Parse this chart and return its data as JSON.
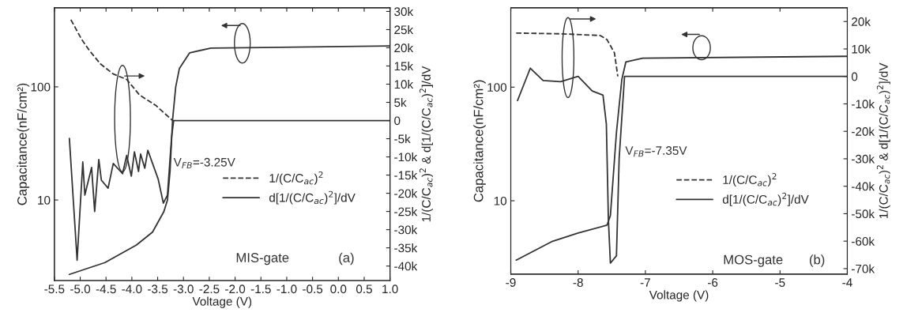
{
  "chart_data": [
    {
      "type": "line",
      "xlabel": "Voltage (V)",
      "ylabel": "Capacitance(nF/cm²)",
      "y2label": "1/(C/C$_{ac}$)$^{2}$ & d[1/(C/C$_{ac}$)$^{2}$]/dV",
      "log": true,
      "grid": false,
      "legend": "right",
      "xlim": [
        -5.5,
        1.0
      ],
      "xticks": [
        {
          "value": -5.5,
          "label": "-5.5"
        },
        {
          "value": -5,
          "label": "-5.0"
        },
        {
          "value": -4.5,
          "label": "-4.5"
        },
        {
          "value": -4,
          "label": "-4.0"
        },
        {
          "value": -3.5,
          "label": "-3.5"
        },
        {
          "value": -3,
          "label": "-3.0"
        },
        {
          "value": -2.5,
          "label": "-2.5"
        },
        {
          "value": -2,
          "label": "-2.0"
        },
        {
          "value": -1.5,
          "label": "-1.5"
        },
        {
          "value": -1,
          "label": "-1.0"
        },
        {
          "value": -0.5,
          "label": "-0.5"
        },
        {
          "value": 0,
          "label": "0.0"
        },
        {
          "value": 0.5,
          "label": "0.5"
        },
        {
          "value": 1,
          "label": "1.0"
        }
      ],
      "ylim": [
        1.94,
        500
      ],
      "yticks": [
        10,
        100
      ],
      "y2lim": [
        -44000,
        31000
      ],
      "y2ticks": [
        {
          "value": 30000,
          "label": "30k"
        },
        {
          "value": 25000,
          "label": "25k"
        },
        {
          "value": 20000,
          "label": "20k"
        },
        {
          "value": 15000,
          "label": "15k"
        },
        {
          "value": 10000,
          "label": "10k"
        },
        {
          "value": 5000,
          "label": "5k"
        },
        0,
        {
          "value": -5000,
          "label": "-5k"
        },
        {
          "value": -10000,
          "label": "-10k"
        },
        {
          "value": -15000,
          "label": "-15k"
        },
        {
          "value": -20000,
          "label": "-20k"
        },
        {
          "value": -25000,
          "label": "-25k"
        },
        {
          "value": -30000,
          "label": "-30k"
        },
        {
          "value": -35000,
          "label": "-35k"
        },
        {
          "value": -40000,
          "label": "-40k"
        }
      ],
      "annotations": [
        "V$_{FB}$=-3.25V",
        "MIS-gate",
        "(a)"
      ],
      "series": [
        {
          "color": "#333333",
          "line_style": "solid",
          "x": [
            -5.21,
            -4.52,
            -3.91,
            -3.6,
            -3.38,
            -3.31,
            -3.26,
            -3.21,
            -3.15,
            -3.08,
            -2.88,
            -2.47,
            -1.45,
            1.0
          ],
          "values": [
            2.2,
            2.8,
            4.0,
            5.2,
            7.9,
            10,
            18,
            52,
            100,
            145,
            200,
            220,
            223,
            230
          ]
        },
        {
          "name": "1/(C/C$_{ac}$)$^{2}$",
          "color": "#333333",
          "line_style": "dashed",
          "axis": "y2",
          "x": [
            -5.18,
            -4.98,
            -4.82,
            -4.61,
            -4.36,
            -4.1,
            -3.85,
            -3.54,
            -3.29,
            -3.21
          ],
          "values": [
            27700,
            22500,
            19200,
            15600,
            12800,
            11300,
            7000,
            4200,
            1000,
            0
          ]
        },
        {
          "name": "d[1/(C/C$_{ac}$)$^{2}$]/dV",
          "color": "#333333",
          "line_style": "solid",
          "axis": "y2",
          "x": [
            -5.21,
            -5.06,
            -4.95,
            -4.91,
            -4.78,
            -4.72,
            -4.64,
            -4.59,
            -4.46,
            -4.36,
            -4.18,
            -4.1,
            -4.01,
            -3.95,
            -3.87,
            -3.83,
            -3.75,
            -3.69,
            -3.49,
            -3.39,
            -3.31,
            -3.23,
            -3.19,
            1.0
          ],
          "values": [
            -4900,
            -38400,
            -11400,
            -20500,
            -12900,
            -25000,
            -10700,
            -16400,
            -18600,
            -11800,
            -14600,
            -9600,
            -15300,
            -8600,
            -14000,
            -9200,
            -13100,
            -8200,
            -16100,
            -22700,
            -20500,
            -4500,
            0,
            0
          ]
        }
      ]
    },
    {
      "type": "line",
      "xlabel": "Voltage (V)",
      "ylabel": "Capacitance(nF/cm²)",
      "y2label": "1/(C/C$_{ac}$)$^{2}$ & d[1/(C/C$_{ac}$)$^{2}$]/dV",
      "log": true,
      "grid": false,
      "legend": "right",
      "xlim": [
        -9,
        -4
      ],
      "xticks": [
        -9,
        -8,
        -7,
        -6,
        -5,
        -4
      ],
      "ylim": [
        2.26,
        500
      ],
      "yticks": [
        10,
        100
      ],
      "y2lim": [
        -72000,
        25000
      ],
      "y2ticks": [
        {
          "value": 20000,
          "label": "20k"
        },
        {
          "value": 10000,
          "label": "10k"
        },
        0,
        {
          "value": -10000,
          "label": "-10k"
        },
        {
          "value": -20000,
          "label": "-20k"
        },
        {
          "value": -30000,
          "label": "-30k"
        },
        {
          "value": -40000,
          "label": "-40k"
        },
        {
          "value": -50000,
          "label": "-50k"
        },
        {
          "value": -60000,
          "label": "-60k"
        },
        {
          "value": -70000,
          "label": "-70k"
        }
      ],
      "annotations": [
        "V$_{FB}$=-7.35V",
        "MOS-gate",
        "(b)"
      ],
      "series": [
        {
          "color": "#333333",
          "line_style": "solid",
          "x": [
            -8.92,
            -8.38,
            -8.0,
            -7.57,
            -7.52,
            -7.43,
            -7.35,
            -7.29,
            -7.04,
            -4.0
          ],
          "values": [
            3.0,
            4.4,
            5.2,
            6.1,
            7.4,
            40,
            117,
            167,
            180,
            187
          ]
        },
        {
          "name": "1/(C/C$_{ac}$)$^{2}$",
          "color": "#333333",
          "line_style": "dashed",
          "axis": "y2",
          "x": [
            -8.92,
            -8.23,
            -7.67,
            -7.57,
            -7.46,
            -7.41
          ],
          "values": [
            15800,
            15500,
            14900,
            13400,
            8600,
            0
          ]
        },
        {
          "name": "d[1/(C/C$_{ac}$)$^{2}$]/dV",
          "color": "#333333",
          "line_style": "solid",
          "axis": "y2",
          "x": [
            -8.9,
            -8.71,
            -8.52,
            -8.26,
            -8.0,
            -7.79,
            -7.63,
            -7.58,
            -7.55,
            -7.52,
            -7.43,
            -7.39,
            -7.31,
            -4.0
          ],
          "values": [
            -8800,
            3000,
            -1500,
            -1900,
            0,
            -5300,
            -6800,
            -17400,
            -52000,
            -68000,
            -65300,
            -29900,
            0,
            0
          ]
        }
      ]
    }
  ]
}
